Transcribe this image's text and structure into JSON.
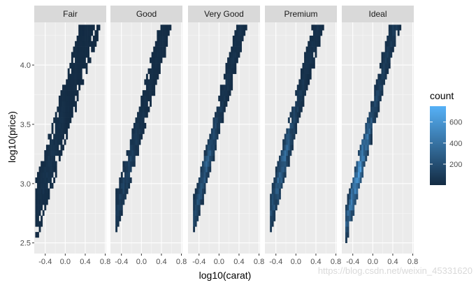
{
  "chart_data": {
    "type": "heatmap",
    "title": "",
    "xlabel": "log10(carat)",
    "ylabel": "log10(price)",
    "facets": [
      "Fair",
      "Good",
      "Very Good",
      "Premium",
      "Ideal"
    ],
    "xlim": [
      -0.62,
      0.82
    ],
    "ylim": [
      2.41,
      4.36
    ],
    "x_ticks": [
      -0.4,
      0.0,
      0.4,
      0.8
    ],
    "x_tick_labels": [
      "-0.4",
      "0.0",
      "0.4",
      "0.8"
    ],
    "y_ticks": [
      2.5,
      3.0,
      3.5,
      4.0
    ],
    "y_tick_labels": [
      "2.5",
      "3.0",
      "3.5",
      "4.0"
    ],
    "grid": true,
    "legend": {
      "title": "count",
      "position": "right",
      "range": [
        1,
        750
      ],
      "breaks": [
        200,
        400,
        600
      ],
      "break_labels": [
        "200",
        "400",
        "600"
      ],
      "low_color": "#132B43",
      "high_color": "#56B1F7"
    },
    "bins": {
      "x_width": 0.036,
      "y_width": 0.046
    },
    "facet_density": [
      {
        "facet": "Fair",
        "x_min": -0.6,
        "x_max": 0.72,
        "y_min": 2.5,
        "y_max": 4.32,
        "slope": 1.45,
        "intercept": 3.62,
        "spread": 0.16,
        "peak": 70,
        "fill": 0.78
      },
      {
        "facet": "Good",
        "x_min": -0.52,
        "x_max": 0.65,
        "y_min": 2.5,
        "y_max": 4.32,
        "slope": 1.62,
        "intercept": 3.55,
        "spread": 0.11,
        "peak": 180,
        "fill": 0.9
      },
      {
        "facet": "Very Good",
        "x_min": -0.52,
        "x_max": 0.58,
        "y_min": 2.5,
        "y_max": 4.32,
        "slope": 1.68,
        "intercept": 3.57,
        "spread": 0.1,
        "peak": 360,
        "fill": 0.92
      },
      {
        "facet": "Premium",
        "x_min": -0.52,
        "x_max": 0.62,
        "y_min": 2.5,
        "y_max": 4.32,
        "slope": 1.68,
        "intercept": 3.6,
        "spread": 0.11,
        "peak": 430,
        "fill": 0.93
      },
      {
        "facet": "Ideal",
        "x_min": -0.55,
        "x_max": 0.62,
        "y_min": 2.5,
        "y_max": 4.32,
        "slope": 1.72,
        "intercept": 3.58,
        "spread": 0.1,
        "peak": 740,
        "fill": 0.94
      }
    ]
  },
  "watermark": "https://blog.csdn.net/weixin_45331620"
}
